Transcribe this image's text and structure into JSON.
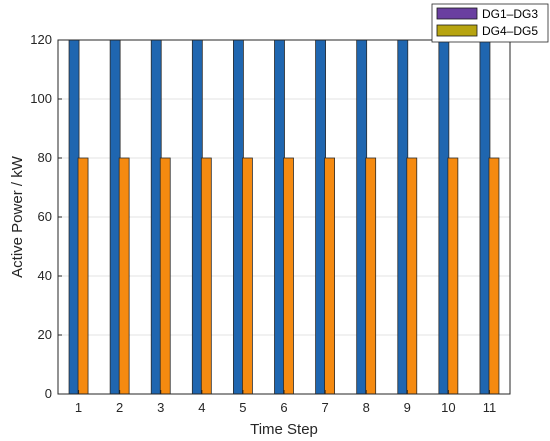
{
  "chart_data": {
    "type": "bar",
    "xlabel": "Time Step",
    "ylabel": "Active Power / kW",
    "categories": [
      "1",
      "2",
      "3",
      "4",
      "5",
      "6",
      "7",
      "8",
      "9",
      "10",
      "11"
    ],
    "ylim": [
      0,
      120
    ],
    "yticks": [
      0,
      20,
      40,
      60,
      80,
      100,
      120
    ],
    "grid": true,
    "legend_position": "top-right",
    "series": [
      {
        "name": "DG1–DG3",
        "values": [
          120,
          120,
          120,
          120,
          120,
          120,
          120,
          120,
          120,
          120,
          120
        ],
        "color": "#1f66b0",
        "legend_color": "#6a3fa0"
      },
      {
        "name": "DG4–DG5",
        "values": [
          80,
          80,
          80,
          80,
          80,
          80,
          80,
          80,
          80,
          80,
          80
        ],
        "color": "#f58a10",
        "legend_color": "#b7a410"
      }
    ]
  }
}
